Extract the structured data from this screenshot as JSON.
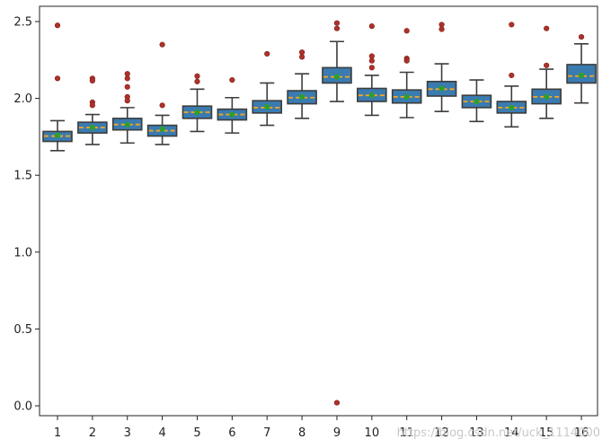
{
  "chart_data": {
    "type": "box",
    "title": "",
    "xlabel": "",
    "ylabel": "",
    "ylim": [
      -0.05,
      2.58
    ],
    "y_ticks": [
      "0.0",
      "0.5",
      "1.0",
      "1.5",
      "2.0",
      "2.5"
    ],
    "grid": false,
    "categories": [
      "1",
      "2",
      "3",
      "4",
      "5",
      "6",
      "7",
      "8",
      "9",
      "10",
      "11",
      "12",
      "13",
      "14",
      "15",
      "16"
    ],
    "boxes": [
      {
        "whislo": 1.66,
        "q1": 1.72,
        "med": 1.755,
        "mean": 1.76,
        "q3": 1.785,
        "whishi": 1.855,
        "fliers": [
          2.475,
          2.13
        ]
      },
      {
        "whislo": 1.7,
        "q1": 1.775,
        "med": 1.81,
        "mean": 1.81,
        "q3": 1.845,
        "whishi": 1.895,
        "fliers": [
          2.13,
          2.115,
          1.975,
          1.955
        ]
      },
      {
        "whislo": 1.71,
        "q1": 1.795,
        "med": 1.83,
        "mean": 1.83,
        "q3": 1.87,
        "whishi": 1.94,
        "fliers": [
          2.16,
          2.13,
          2.075,
          2.01,
          1.985
        ]
      },
      {
        "whislo": 1.7,
        "q1": 1.755,
        "med": 1.79,
        "mean": 1.8,
        "q3": 1.825,
        "whishi": 1.89,
        "fliers": [
          2.35,
          1.955
        ]
      },
      {
        "whislo": 1.785,
        "q1": 1.87,
        "med": 1.91,
        "mean": 1.91,
        "q3": 1.95,
        "whishi": 2.06,
        "fliers": [
          2.145,
          2.11
        ]
      },
      {
        "whislo": 1.775,
        "q1": 1.86,
        "med": 1.895,
        "mean": 1.895,
        "q3": 1.93,
        "whishi": 2.005,
        "fliers": [
          2.12
        ]
      },
      {
        "whislo": 1.825,
        "q1": 1.905,
        "med": 1.94,
        "mean": 1.945,
        "q3": 1.985,
        "whishi": 2.1,
        "fliers": [
          2.29
        ]
      },
      {
        "whislo": 1.87,
        "q1": 1.965,
        "med": 2.005,
        "mean": 2.01,
        "q3": 2.05,
        "whishi": 2.16,
        "fliers": [
          2.3,
          2.27
        ]
      },
      {
        "whislo": 1.98,
        "q1": 2.1,
        "med": 2.14,
        "mean": 2.14,
        "q3": 2.2,
        "whishi": 2.37,
        "fliers": [
          2.49,
          2.455,
          0.02
        ]
      },
      {
        "whislo": 1.89,
        "q1": 1.98,
        "med": 2.02,
        "mean": 2.02,
        "q3": 2.065,
        "whishi": 2.15,
        "fliers": [
          2.47,
          2.275,
          2.245,
          2.2
        ]
      },
      {
        "whislo": 1.875,
        "q1": 1.97,
        "med": 2.01,
        "mean": 2.01,
        "q3": 2.055,
        "whishi": 2.17,
        "fliers": [
          2.44,
          2.26,
          2.245
        ]
      },
      {
        "whislo": 1.915,
        "q1": 2.015,
        "med": 2.06,
        "mean": 2.065,
        "q3": 2.11,
        "whishi": 2.225,
        "fliers": [
          2.48,
          2.45
        ]
      },
      {
        "whislo": 1.85,
        "q1": 1.94,
        "med": 1.98,
        "mean": 1.98,
        "q3": 2.02,
        "whishi": 2.12,
        "fliers": []
      },
      {
        "whislo": 1.815,
        "q1": 1.905,
        "med": 1.94,
        "mean": 1.94,
        "q3": 1.98,
        "whishi": 2.08,
        "fliers": [
          2.48,
          2.15
        ]
      },
      {
        "whislo": 1.87,
        "q1": 1.965,
        "med": 2.01,
        "mean": 2.01,
        "q3": 2.06,
        "whishi": 2.19,
        "fliers": [
          2.455,
          2.215
        ]
      },
      {
        "whislo": 1.97,
        "q1": 2.1,
        "med": 2.145,
        "mean": 2.15,
        "q3": 2.22,
        "whishi": 2.355,
        "fliers": [
          2.4
        ]
      }
    ]
  },
  "colors": {
    "box_fill": "#3a7bb0",
    "box_edge": "#3d3d3d",
    "median": "#f5a623",
    "mean_marker": "#2ca02c",
    "flier": "#b0302a",
    "axis": "#222222",
    "watermark": "#c8c8c8"
  },
  "watermark_text": "https://blog.csdn.net/uck_1114000"
}
